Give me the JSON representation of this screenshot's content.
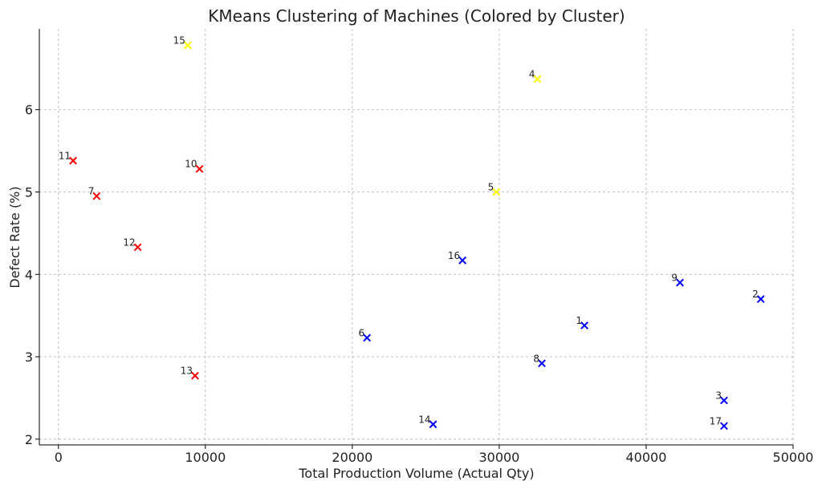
{
  "chart_data": {
    "type": "scatter",
    "title": "KMeans Clustering of Machines (Colored by Cluster)",
    "xlabel": "Total Production Volume (Actual Qty)",
    "ylabel": "Defect Rate (%)",
    "xlim": [
      -1300,
      50000
    ],
    "ylim": [
      1.93,
      6.98
    ],
    "xticks": [
      0,
      10000,
      20000,
      30000,
      40000,
      50000
    ],
    "yticks": [
      2,
      3,
      4,
      5,
      6
    ],
    "grid": true,
    "marker": "x",
    "cluster_colors": [
      "#0000ff",
      "#ff0000",
      "#ffff00"
    ],
    "points": [
      {
        "label": "1",
        "x": 35800,
        "y": 3.38,
        "cluster": 0
      },
      {
        "label": "2",
        "x": 47800,
        "y": 3.7,
        "cluster": 0
      },
      {
        "label": "3",
        "x": 45300,
        "y": 2.47,
        "cluster": 0
      },
      {
        "label": "4",
        "x": 32600,
        "y": 6.37,
        "cluster": 2
      },
      {
        "label": "5",
        "x": 29800,
        "y": 5.0,
        "cluster": 2
      },
      {
        "label": "6",
        "x": 21000,
        "y": 3.23,
        "cluster": 0
      },
      {
        "label": "7",
        "x": 2600,
        "y": 4.95,
        "cluster": 1
      },
      {
        "label": "8",
        "x": 32900,
        "y": 2.92,
        "cluster": 0
      },
      {
        "label": "9",
        "x": 42300,
        "y": 3.9,
        "cluster": 0
      },
      {
        "label": "10",
        "x": 9600,
        "y": 5.28,
        "cluster": 1
      },
      {
        "label": "11",
        "x": 1000,
        "y": 5.38,
        "cluster": 1
      },
      {
        "label": "12",
        "x": 5400,
        "y": 4.33,
        "cluster": 1
      },
      {
        "label": "13",
        "x": 9300,
        "y": 2.77,
        "cluster": 1
      },
      {
        "label": "14",
        "x": 25500,
        "y": 2.18,
        "cluster": 0
      },
      {
        "label": "15",
        "x": 8800,
        "y": 6.78,
        "cluster": 2
      },
      {
        "label": "16",
        "x": 27500,
        "y": 4.17,
        "cluster": 0
      },
      {
        "label": "17",
        "x": 45300,
        "y": 2.16,
        "cluster": 0
      }
    ]
  }
}
